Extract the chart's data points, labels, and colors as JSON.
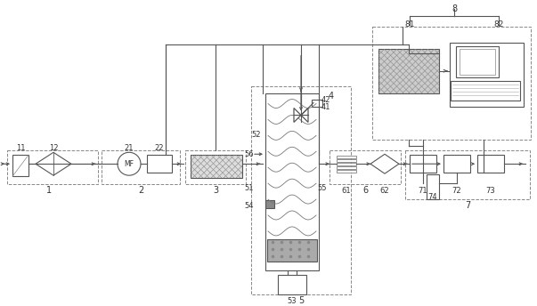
{
  "lc": "#555555",
  "dc": "#888888",
  "gray": "#aaaaaa",
  "dgray": "#888888",
  "lgray": "#cccccc",
  "dpi": 100,
  "fw": 6.03,
  "fh": 3.44,
  "fl": 185
}
